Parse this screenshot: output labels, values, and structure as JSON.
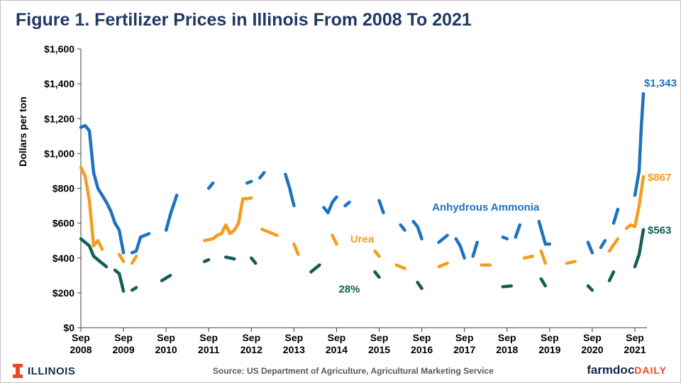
{
  "header": {
    "title": "Figure 1. Fertilizer Prices in Illinois From 2008 To 2021"
  },
  "footer": {
    "source": "Source: US Department of Agriculture, Agricultural Marketing Service",
    "logo_left": "ILLINOIS",
    "logo_right_main": "farmdoc",
    "logo_right_accent": "DAILY"
  },
  "chart_data": {
    "type": "line",
    "title": "Figure 1. Fertilizer Prices in Illinois From 2008 To 2021",
    "ylabel": "Dollars per ton",
    "xlabel": "",
    "ylim": [
      0,
      1600
    ],
    "yticks": [
      0,
      200,
      400,
      600,
      800,
      1000,
      1200,
      1400,
      1600
    ],
    "ytick_labels": [
      "$0",
      "$200",
      "$400",
      "$600",
      "$800",
      "$1,000",
      "$1,200",
      "$1,400",
      "$1,600"
    ],
    "xlim": [
      2008.0,
      2021.5
    ],
    "xticks": [
      2008,
      2009,
      2010,
      2011,
      2012,
      2013,
      2014,
      2015,
      2016,
      2017,
      2018,
      2019,
      2020,
      2021
    ],
    "xtick_labels": [
      [
        "Sep",
        "2008"
      ],
      [
        "Sep",
        "2009"
      ],
      [
        "Sep",
        "2010"
      ],
      [
        "Sep",
        "2011"
      ],
      [
        "Sep",
        "2012"
      ],
      [
        "Sep",
        "2013"
      ],
      [
        "Sep",
        "2014"
      ],
      [
        "Sep",
        "2015"
      ],
      [
        "Sep",
        "2016"
      ],
      [
        "Sep",
        "2017"
      ],
      [
        "Sep",
        "2018"
      ],
      [
        "Sep",
        "2019"
      ],
      [
        "Sep",
        "2020"
      ],
      [
        "Sep",
        "2021"
      ]
    ],
    "grid": false,
    "series": [
      {
        "name": "Anhydrous Ammonia",
        "color": "#1f72c0",
        "end_label": "$1,343",
        "points": [
          [
            2008.0,
            1150
          ],
          [
            2008.1,
            1160
          ],
          [
            2008.2,
            1130
          ],
          [
            2008.3,
            890
          ],
          [
            2008.4,
            800
          ],
          [
            2008.5,
            760
          ],
          [
            2008.6,
            720
          ],
          [
            2008.7,
            670
          ],
          [
            2008.8,
            600
          ],
          [
            2008.9,
            560
          ],
          [
            2009.0,
            430
          ],
          [
            2009.2,
            430
          ],
          [
            2009.3,
            440
          ],
          [
            2009.4,
            520
          ],
          [
            2009.6,
            540
          ],
          [
            2009.8,
            560
          ],
          [
            2010.0,
            560
          ],
          [
            2010.1,
            650
          ],
          [
            2010.25,
            760
          ],
          [
            2010.5,
            790
          ],
          [
            2010.8,
            800
          ],
          [
            2011.0,
            800
          ],
          [
            2011.1,
            830
          ],
          [
            2011.3,
            850
          ],
          [
            2011.5,
            860
          ],
          [
            2011.7,
            840
          ],
          [
            2011.9,
            830
          ],
          [
            2012.0,
            840
          ],
          [
            2012.2,
            860
          ],
          [
            2012.3,
            890
          ],
          [
            2012.6,
            890
          ],
          [
            2012.8,
            880
          ],
          [
            2012.9,
            800
          ],
          [
            2013.0,
            700
          ],
          [
            2013.3,
            680
          ],
          [
            2013.5,
            660
          ],
          [
            2013.7,
            690
          ],
          [
            2013.8,
            660
          ],
          [
            2013.9,
            720
          ],
          [
            2014.0,
            750
          ],
          [
            2014.2,
            700
          ],
          [
            2014.3,
            720
          ],
          [
            2014.5,
            730
          ],
          [
            2014.7,
            730
          ],
          [
            2015.0,
            730
          ],
          [
            2015.1,
            660
          ],
          [
            2015.3,
            650
          ],
          [
            2015.5,
            590
          ],
          [
            2015.6,
            560
          ],
          [
            2015.8,
            610
          ],
          [
            2015.9,
            580
          ],
          [
            2016.0,
            510
          ],
          [
            2016.2,
            500
          ],
          [
            2016.4,
            490
          ],
          [
            2016.6,
            530
          ],
          [
            2016.8,
            510
          ],
          [
            2016.9,
            470
          ],
          [
            2017.0,
            400
          ],
          [
            2017.2,
            410
          ],
          [
            2017.3,
            490
          ],
          [
            2017.5,
            510
          ],
          [
            2017.7,
            520
          ],
          [
            2017.9,
            520
          ],
          [
            2018.0,
            510
          ],
          [
            2018.2,
            520
          ],
          [
            2018.3,
            590
          ],
          [
            2018.5,
            620
          ],
          [
            2018.75,
            610
          ],
          [
            2018.9,
            480
          ],
          [
            2019.0,
            480
          ],
          [
            2019.3,
            490
          ],
          [
            2019.5,
            500
          ],
          [
            2019.7,
            500
          ],
          [
            2019.9,
            490
          ],
          [
            2020.0,
            430
          ],
          [
            2020.2,
            460
          ],
          [
            2020.3,
            500
          ],
          [
            2020.5,
            600
          ],
          [
            2020.6,
            680
          ],
          [
            2020.8,
            720
          ],
          [
            2021.0,
            760
          ],
          [
            2021.1,
            900
          ],
          [
            2021.15,
            1150
          ],
          [
            2021.2,
            1343
          ]
        ]
      },
      {
        "name": "Urea",
        "color": "#f59d1f",
        "end_label": "$867",
        "points": [
          [
            2008.0,
            920
          ],
          [
            2008.1,
            870
          ],
          [
            2008.2,
            730
          ],
          [
            2008.3,
            470
          ],
          [
            2008.4,
            500
          ],
          [
            2008.5,
            450
          ],
          [
            2008.7,
            430
          ],
          [
            2008.9,
            420
          ],
          [
            2009.0,
            380
          ],
          [
            2009.2,
            370
          ],
          [
            2009.3,
            410
          ],
          [
            2009.6,
            430
          ],
          [
            2009.9,
            420
          ],
          [
            2010.2,
            450
          ],
          [
            2010.4,
            480
          ],
          [
            2010.7,
            500
          ],
          [
            2010.9,
            500
          ],
          [
            2011.1,
            510
          ],
          [
            2011.2,
            530
          ],
          [
            2011.3,
            540
          ],
          [
            2011.4,
            590
          ],
          [
            2011.5,
            540
          ],
          [
            2011.6,
            560
          ],
          [
            2011.7,
            600
          ],
          [
            2011.8,
            740
          ],
          [
            2011.9,
            740
          ],
          [
            2012.0,
            745
          ],
          [
            2012.25,
            565
          ],
          [
            2012.4,
            550
          ],
          [
            2012.6,
            530
          ],
          [
            2012.8,
            510
          ],
          [
            2013.0,
            480
          ],
          [
            2013.1,
            420
          ],
          [
            2013.3,
            440
          ],
          [
            2013.5,
            520
          ],
          [
            2013.7,
            550
          ],
          [
            2013.9,
            530
          ],
          [
            2014.0,
            480
          ],
          [
            2014.3,
            470
          ],
          [
            2014.6,
            460
          ],
          [
            2014.9,
            440
          ],
          [
            2015.0,
            410
          ],
          [
            2015.2,
            380
          ],
          [
            2015.4,
            360
          ],
          [
            2015.6,
            340
          ],
          [
            2015.8,
            360
          ],
          [
            2016.0,
            310
          ],
          [
            2016.2,
            310
          ],
          [
            2016.4,
            350
          ],
          [
            2016.6,
            370
          ],
          [
            2016.8,
            350
          ],
          [
            2017.0,
            310
          ],
          [
            2017.2,
            330
          ],
          [
            2017.4,
            360
          ],
          [
            2017.6,
            360
          ],
          [
            2017.8,
            350
          ],
          [
            2018.0,
            360
          ],
          [
            2018.2,
            410
          ],
          [
            2018.4,
            400
          ],
          [
            2018.6,
            410
          ],
          [
            2018.8,
            440
          ],
          [
            2018.9,
            370
          ],
          [
            2019.2,
            370
          ],
          [
            2019.4,
            370
          ],
          [
            2019.6,
            380
          ],
          [
            2019.8,
            380
          ],
          [
            2020.0,
            360
          ],
          [
            2020.2,
            360
          ],
          [
            2020.4,
            440
          ],
          [
            2020.6,
            510
          ],
          [
            2020.8,
            570
          ],
          [
            2020.9,
            590
          ],
          [
            2021.0,
            580
          ],
          [
            2021.1,
            700
          ],
          [
            2021.2,
            867
          ]
        ]
      },
      {
        "name": "28%",
        "color": "#155e55",
        "end_label": "$563",
        "points": [
          [
            2008.0,
            510
          ],
          [
            2008.1,
            490
          ],
          [
            2008.2,
            470
          ],
          [
            2008.3,
            410
          ],
          [
            2008.4,
            390
          ],
          [
            2008.6,
            350
          ],
          [
            2008.8,
            330
          ],
          [
            2008.9,
            310
          ],
          [
            2009.0,
            210
          ],
          [
            2009.2,
            215
          ],
          [
            2009.3,
            230
          ],
          [
            2009.5,
            260
          ],
          [
            2009.7,
            270
          ],
          [
            2009.9,
            270
          ],
          [
            2010.1,
            300
          ],
          [
            2010.3,
            330
          ],
          [
            2010.5,
            345
          ],
          [
            2010.7,
            360
          ],
          [
            2010.9,
            380
          ],
          [
            2011.0,
            390
          ],
          [
            2011.2,
            395
          ],
          [
            2011.4,
            405
          ],
          [
            2011.6,
            395
          ],
          [
            2011.8,
            420
          ],
          [
            2012.0,
            400
          ],
          [
            2012.1,
            370
          ],
          [
            2012.3,
            390
          ],
          [
            2012.6,
            390
          ],
          [
            2012.8,
            390
          ],
          [
            2013.0,
            330
          ],
          [
            2013.2,
            310
          ],
          [
            2013.4,
            320
          ],
          [
            2013.6,
            360
          ],
          [
            2013.8,
            370
          ],
          [
            2014.0,
            340
          ],
          [
            2014.3,
            330
          ],
          [
            2014.6,
            330
          ],
          [
            2014.9,
            320
          ],
          [
            2015.0,
            290
          ],
          [
            2015.3,
            280
          ],
          [
            2015.6,
            275
          ],
          [
            2015.9,
            260
          ],
          [
            2016.0,
            225
          ],
          [
            2016.3,
            225
          ],
          [
            2016.5,
            240
          ],
          [
            2016.8,
            240
          ],
          [
            2017.0,
            215
          ],
          [
            2017.3,
            225
          ],
          [
            2017.6,
            235
          ],
          [
            2017.9,
            235
          ],
          [
            2018.1,
            240
          ],
          [
            2018.3,
            280
          ],
          [
            2018.5,
            290
          ],
          [
            2018.8,
            280
          ],
          [
            2018.9,
            240
          ],
          [
            2019.2,
            240
          ],
          [
            2019.5,
            245
          ],
          [
            2019.9,
            240
          ],
          [
            2020.0,
            215
          ],
          [
            2020.2,
            220
          ],
          [
            2020.4,
            270
          ],
          [
            2020.5,
            320
          ],
          [
            2020.8,
            340
          ],
          [
            2021.0,
            350
          ],
          [
            2021.1,
            420
          ],
          [
            2021.2,
            563
          ]
        ]
      }
    ],
    "annotations": [
      {
        "text": "Anhydrous Ammonia",
        "series": "Anhydrous Ammonia",
        "x": 2017.5,
        "y": 693
      },
      {
        "text": "Urea",
        "series": "Urea",
        "x": 2014.6,
        "y": 508
      },
      {
        "text": "28%",
        "series": "28%",
        "x": 2014.3,
        "y": 222
      }
    ]
  }
}
